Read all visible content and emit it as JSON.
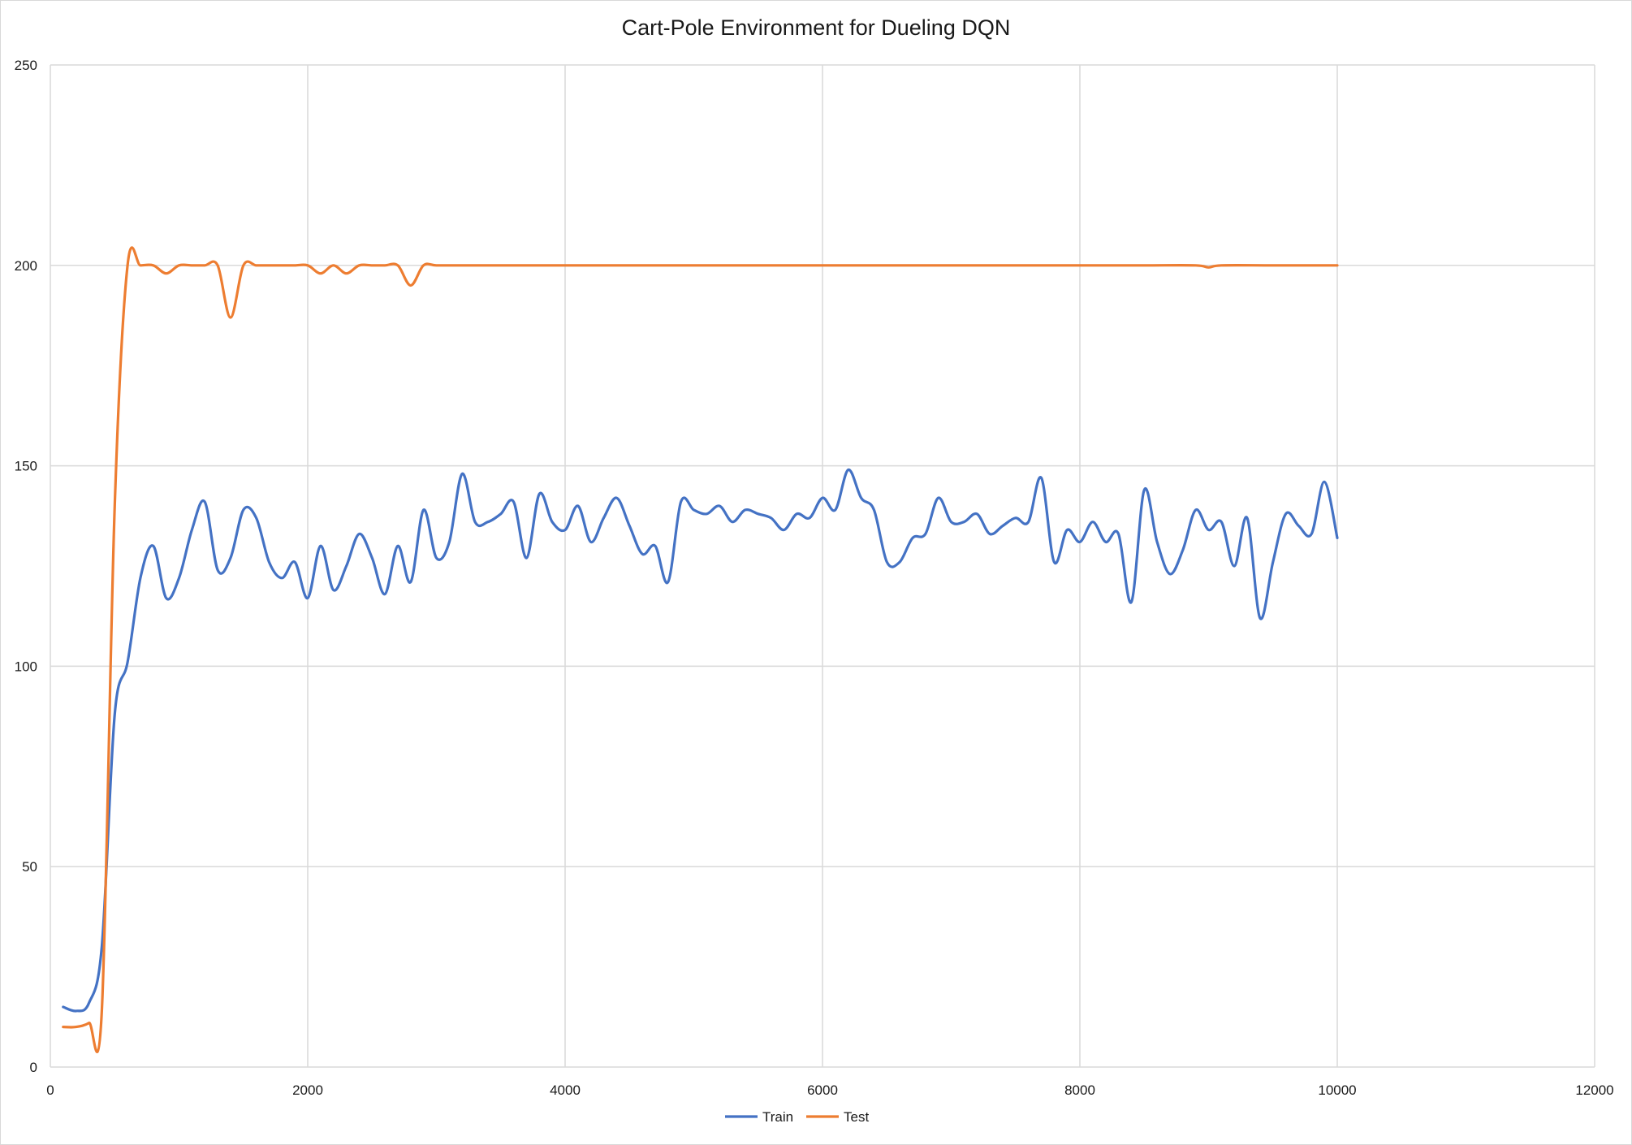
{
  "chart_data": {
    "type": "line",
    "title": "Cart-Pole Environment for Dueling DQN",
    "xlabel": "",
    "ylabel": "",
    "xlim": [
      0,
      12000
    ],
    "ylim": [
      0,
      250
    ],
    "x_ticks": [
      0,
      2000,
      4000,
      6000,
      8000,
      10000,
      12000
    ],
    "y_ticks": [
      0,
      50,
      100,
      150,
      200,
      250
    ],
    "grid": true,
    "legend_position": "bottom",
    "series": [
      {
        "name": "Train",
        "color": "#4472c4",
        "x": [
          100,
          200,
          300,
          400,
          500,
          600,
          700,
          800,
          900,
          1000,
          1100,
          1200,
          1300,
          1400,
          1500,
          1600,
          1700,
          1800,
          1900,
          2000,
          2100,
          2200,
          2300,
          2400,
          2500,
          2600,
          2700,
          2800,
          2900,
          3000,
          3100,
          3200,
          3300,
          3400,
          3500,
          3600,
          3700,
          3800,
          3900,
          4000,
          4100,
          4200,
          4300,
          4400,
          4500,
          4600,
          4700,
          4800,
          4900,
          5000,
          5100,
          5200,
          5300,
          5400,
          5500,
          5600,
          5700,
          5800,
          5900,
          6000,
          6100,
          6200,
          6300,
          6400,
          6500,
          6600,
          6700,
          6800,
          6900,
          7000,
          7100,
          7200,
          7300,
          7400,
          7500,
          7600,
          7700,
          7800,
          7900,
          8000,
          8100,
          8200,
          8300,
          8400,
          8500,
          8600,
          8700,
          8800,
          8900,
          9000,
          9100,
          9200,
          9300,
          9400,
          9500,
          9600,
          9700,
          9800,
          9900,
          10000
        ],
        "values": [
          15,
          14,
          16,
          30,
          88,
          101,
          122,
          130,
          117,
          122,
          134,
          141,
          124,
          127,
          139,
          137,
          126,
          122,
          126,
          117,
          130,
          119,
          125,
          133,
          127,
          118,
          130,
          121,
          139,
          127,
          131,
          148,
          136,
          136,
          138,
          141,
          127,
          143,
          136,
          134,
          140,
          131,
          137,
          142,
          135,
          128,
          130,
          121,
          141,
          139,
          138,
          140,
          136,
          139,
          138,
          137,
          134,
          138,
          137,
          142,
          139,
          149,
          142,
          139,
          126,
          126,
          132,
          133,
          142,
          136,
          136,
          138,
          133,
          135,
          137,
          136,
          147,
          126,
          134,
          131,
          136,
          131,
          133,
          116,
          144,
          131,
          123,
          129,
          139,
          134,
          136,
          125,
          137,
          112,
          126,
          138,
          135,
          133,
          146,
          132
        ]
      },
      {
        "name": "Test",
        "color": "#ed7d31",
        "x": [
          100,
          200,
          300,
          400,
          500,
          600,
          700,
          800,
          900,
          1000,
          1100,
          1200,
          1300,
          1400,
          1500,
          1600,
          1700,
          1800,
          1900,
          2000,
          2100,
          2200,
          2300,
          2400,
          2500,
          2600,
          2700,
          2800,
          2900,
          3000,
          3200,
          3500,
          4000,
          4500,
          5000,
          5500,
          6000,
          6500,
          7000,
          7500,
          8000,
          8500,
          8900,
          9000,
          9100,
          9500,
          10000
        ],
        "values": [
          10,
          10,
          11,
          14,
          140,
          200,
          200,
          200,
          198,
          200,
          200,
          200,
          200,
          187,
          200,
          200,
          200,
          200,
          200,
          200,
          198,
          200,
          198,
          200,
          200,
          200,
          200,
          195,
          200,
          200,
          200,
          200,
          200,
          200,
          200,
          200,
          200,
          200,
          200,
          200,
          200,
          200,
          200,
          199.5,
          200,
          200,
          200
        ]
      }
    ]
  }
}
